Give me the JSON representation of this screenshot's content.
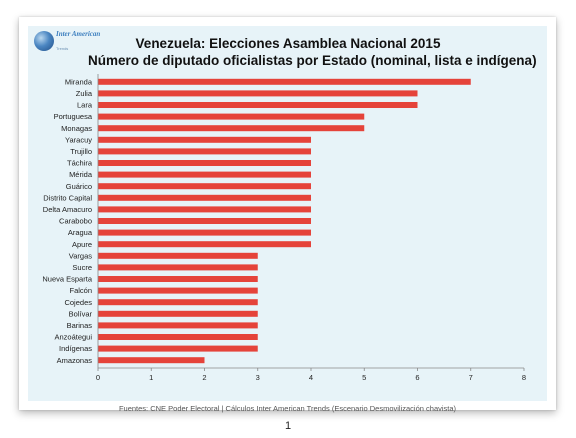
{
  "logo": {
    "name": "Inter American",
    "sub": "Trends"
  },
  "page_number": "1",
  "colors": {
    "bar": "#e5433a",
    "panel": "#e7f3f8"
  },
  "chart_data": {
    "type": "bar",
    "orientation": "horizontal",
    "title": "Venezuela: Elecciones Asamblea Nacional 2015",
    "subtitle": "Número de diputado oficialistas por Estado (nominal, lista e indígena)",
    "categories": [
      "Miranda",
      "Zulia",
      "Lara",
      "Portuguesa",
      "Monagas",
      "Yaracuy",
      "Trujillo",
      "Táchira",
      "Mérida",
      "Guárico",
      "Distrito Capital",
      "Delta Amacuro",
      "Carabobo",
      "Aragua",
      "Apure",
      "Vargas",
      "Sucre",
      "Nueva Esparta",
      "Falcón",
      "Cojedes",
      "Bolívar",
      "Barinas",
      "Anzoátegui",
      "Indígenas",
      "Amazonas"
    ],
    "values": [
      7,
      6,
      6,
      5,
      5,
      4,
      4,
      4,
      4,
      4,
      4,
      4,
      4,
      4,
      4,
      3,
      3,
      3,
      3,
      3,
      3,
      3,
      3,
      3,
      2
    ],
    "xlim": [
      0,
      8
    ],
    "xticks": [
      "0",
      "1",
      "2",
      "3",
      "4",
      "5",
      "6",
      "7",
      "8"
    ],
    "grid": false,
    "legend": "none",
    "source": "Fuentes: CNE Poder Electoral  |  Cálculos Inter American Trends (Escenario Desmovilización chavista)"
  }
}
